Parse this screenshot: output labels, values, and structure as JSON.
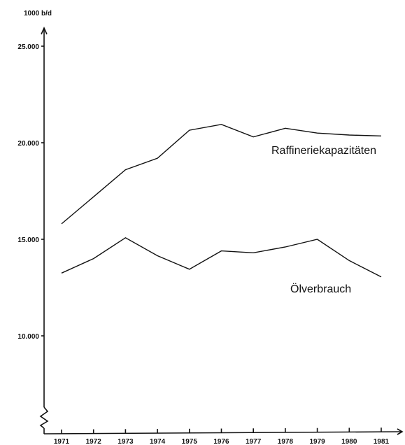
{
  "chart_data": {
    "type": "line",
    "title": "",
    "y_unit": "1000 b/d",
    "categories": [
      "1971",
      "1972",
      "1973",
      "1974",
      "1975",
      "1976",
      "1977",
      "1978",
      "1979",
      "1980",
      "1981"
    ],
    "y_ticks": [
      {
        "value": 10000,
        "label": "10.000"
      },
      {
        "value": 15000,
        "label": "15.000"
      },
      {
        "value": 20000,
        "label": "20.000"
      },
      {
        "value": 25000,
        "label": "25.000"
      }
    ],
    "ylim": [
      5000,
      26000
    ],
    "axis_break": true,
    "grid": false,
    "legend": "inline labels next to series",
    "series": [
      {
        "name": "Raffineriekapazitäten",
        "values": [
          15800,
          17200,
          18600,
          19200,
          20650,
          20950,
          20300,
          20750,
          20500,
          20400,
          20350
        ]
      },
      {
        "name": "Ölverbrauch",
        "values": [
          13250,
          14000,
          15080,
          14150,
          13450,
          14400,
          14300,
          14600,
          15000,
          13900,
          13050
        ]
      }
    ],
    "line_color": "#111111"
  }
}
